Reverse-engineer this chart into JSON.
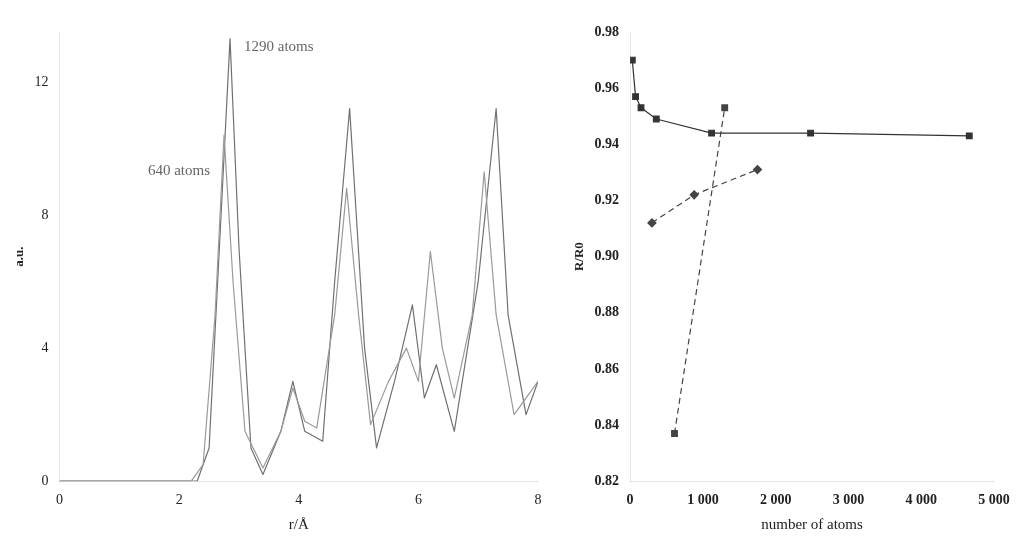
{
  "chart_data": [
    {
      "type": "line",
      "xlabel": "r/Å",
      "ylabel": "a.u.",
      "xlim": [
        0,
        8
      ],
      "xticks": [
        0,
        2,
        4,
        6,
        8
      ],
      "ylim": [
        0,
        13.5
      ],
      "yticks": [
        0,
        4,
        8,
        12
      ],
      "grid": false,
      "legend": false,
      "marker": "none",
      "line_style": "solid",
      "series": [
        {
          "name": "640 atoms",
          "color": "#9a9a9a",
          "x": [
            0,
            2.2,
            2.4,
            2.6,
            2.75,
            2.9,
            3.1,
            3.4,
            3.7,
            3.9,
            4.1,
            4.3,
            4.6,
            4.8,
            5.0,
            5.2,
            5.5,
            5.8,
            6.0,
            6.2,
            6.4,
            6.6,
            6.9,
            7.1,
            7.3,
            7.6,
            8.0
          ],
          "values": [
            0,
            0,
            0.5,
            5,
            10.4,
            6,
            1.5,
            0.4,
            1.5,
            2.8,
            1.8,
            1.6,
            5,
            8.8,
            5,
            1.7,
            3,
            4,
            3,
            6.9,
            4,
            2.5,
            5,
            9.3,
            5,
            2,
            3
          ]
        },
        {
          "name": "1290 atoms",
          "color": "#707070",
          "x": [
            0,
            2.3,
            2.5,
            2.7,
            2.85,
            3.0,
            3.2,
            3.4,
            3.7,
            3.9,
            4.1,
            4.4,
            4.6,
            4.85,
            5.1,
            5.3,
            5.6,
            5.9,
            6.1,
            6.3,
            6.6,
            7.0,
            7.3,
            7.5,
            7.8,
            8.0
          ],
          "values": [
            0,
            0,
            1,
            8,
            13.3,
            7,
            1,
            0.2,
            1.5,
            3,
            1.5,
            1.2,
            6,
            11.2,
            4,
            1,
            3,
            5.3,
            2.5,
            3.5,
            1.5,
            6,
            11.2,
            5,
            2,
            3
          ]
        }
      ]
    },
    {
      "type": "line",
      "xlabel": "number of atoms",
      "ylabel": "R/R0",
      "xlim": [
        0,
        5000
      ],
      "xticks": [
        0,
        {
          "value": 1000,
          "label": "1 000"
        },
        {
          "value": 2000,
          "label": "2 000"
        },
        {
          "value": 3000,
          "label": "3 000"
        },
        {
          "value": 4000,
          "label": "4 000"
        },
        {
          "value": 5000,
          "label": "5 000"
        }
      ],
      "ylim": [
        0.82,
        0.98
      ],
      "yticks": [
        0.82,
        0.84,
        0.86,
        0.88,
        {
          "value": 0.9,
          "label": "0.90"
        },
        0.92,
        0.94,
        0.96,
        0.98
      ],
      "grid": false,
      "legend": false,
      "series": [
        {
          "color": "#333333",
          "marker": "square",
          "line_style": "solid",
          "x": [
            30,
            75,
            150,
            360,
            1120,
            2480,
            4660
          ],
          "values": [
            0.97,
            0.957,
            0.953,
            0.949,
            0.944,
            0.944,
            0.943
          ]
        },
        {
          "color": "#444444",
          "marker": "diamond",
          "line_style": "dashed",
          "x": [
            300,
            880,
            1750
          ],
          "values": [
            0.912,
            0.922,
            0.931
          ]
        },
        {
          "color": "#444444",
          "marker": "square",
          "line_style": "dashed",
          "x": [
            610,
            1300
          ],
          "values": [
            0.837,
            0.953
          ]
        }
      ]
    }
  ]
}
